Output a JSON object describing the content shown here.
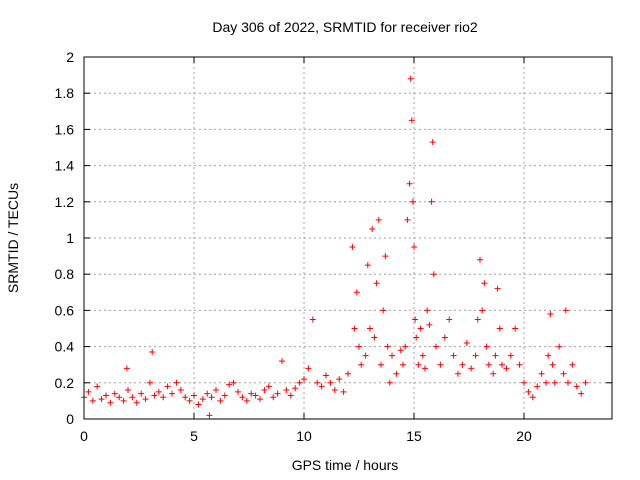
{
  "chart_data": {
    "type": "scatter",
    "title": "Day 306 of 2022, SRMTID for receiver rio2",
    "xlabel": "GPS time / hours",
    "ylabel": "SRMTID / TECUs",
    "xlim": [
      0,
      24
    ],
    "ylim": [
      0,
      2
    ],
    "xticks": [
      0,
      5,
      10,
      15,
      20
    ],
    "xtick_labels": [
      "0",
      "5",
      "10",
      "15",
      "20"
    ],
    "yticks": [
      0,
      0.2,
      0.4,
      0.6,
      0.8,
      1,
      1.2,
      1.4,
      1.6,
      1.8,
      2
    ],
    "ytick_labels": [
      "0",
      "0.2",
      "0.4",
      "0.6",
      "0.8",
      "1",
      "1.2",
      "1.4",
      "1.6",
      "1.8",
      "2"
    ],
    "grid": true,
    "marker": "+",
    "marker_color": "#ff0000",
    "series": [
      {
        "name": "SRMTID",
        "x": [
          0.0,
          0.2,
          0.4,
          0.6,
          0.8,
          1.0,
          1.2,
          1.4,
          1.6,
          1.8,
          1.95,
          2.0,
          2.2,
          2.4,
          2.6,
          2.8,
          3.0,
          3.1,
          3.2,
          3.4,
          3.6,
          3.8,
          4.0,
          4.2,
          4.4,
          4.6,
          4.8,
          5.0,
          5.2,
          5.4,
          5.6,
          5.7,
          5.8,
          6.0,
          6.2,
          6.4,
          6.6,
          6.8,
          7.0,
          7.2,
          7.4,
          7.6,
          7.8,
          8.0,
          8.2,
          8.4,
          8.6,
          8.8,
          9.0,
          9.2,
          9.4,
          9.6,
          9.8,
          10.0,
          10.2,
          10.4,
          10.6,
          10.8,
          11.0,
          11.2,
          11.4,
          11.6,
          11.8,
          12.0,
          12.2,
          12.3,
          12.4,
          12.5,
          12.6,
          12.8,
          12.9,
          13.0,
          13.1,
          13.2,
          13.3,
          13.4,
          13.5,
          13.6,
          13.7,
          13.8,
          13.9,
          14.0,
          14.2,
          14.4,
          14.5,
          14.6,
          14.7,
          14.8,
          14.85,
          14.9,
          14.95,
          15.0,
          15.05,
          15.1,
          15.2,
          15.3,
          15.4,
          15.5,
          15.6,
          15.7,
          15.8,
          15.85,
          15.9,
          16.0,
          16.2,
          16.4,
          16.6,
          16.8,
          17.0,
          17.2,
          17.4,
          17.6,
          17.8,
          17.9,
          18.0,
          18.1,
          18.2,
          18.3,
          18.4,
          18.6,
          18.7,
          18.8,
          18.9,
          19.0,
          19.2,
          19.4,
          19.6,
          19.8,
          20.0,
          20.2,
          20.4,
          20.6,
          20.8,
          21.0,
          21.1,
          21.2,
          21.3,
          21.4,
          21.6,
          21.8,
          21.9,
          22.0,
          22.2,
          22.4,
          22.6,
          22.8
        ],
        "y": [
          0.12,
          0.15,
          0.1,
          0.18,
          0.11,
          0.13,
          0.09,
          0.14,
          0.12,
          0.1,
          0.28,
          0.16,
          0.12,
          0.09,
          0.14,
          0.11,
          0.2,
          0.37,
          0.13,
          0.15,
          0.12,
          0.18,
          0.14,
          0.2,
          0.16,
          0.12,
          0.1,
          0.13,
          0.08,
          0.11,
          0.14,
          0.02,
          0.12,
          0.16,
          0.1,
          0.13,
          0.19,
          0.2,
          0.15,
          0.12,
          0.1,
          0.14,
          0.13,
          0.11,
          0.16,
          0.18,
          0.12,
          0.14,
          0.32,
          0.16,
          0.13,
          0.17,
          0.2,
          0.22,
          0.28,
          0.55,
          0.2,
          0.18,
          0.24,
          0.2,
          0.16,
          0.22,
          0.15,
          0.25,
          0.95,
          0.5,
          0.7,
          0.4,
          0.3,
          0.35,
          0.85,
          0.5,
          1.05,
          0.45,
          0.75,
          1.1,
          0.3,
          0.6,
          0.9,
          0.4,
          0.2,
          0.35,
          0.25,
          0.38,
          0.3,
          0.4,
          1.1,
          1.3,
          1.88,
          1.65,
          1.2,
          0.95,
          0.55,
          0.45,
          0.3,
          0.5,
          0.35,
          0.28,
          0.6,
          0.52,
          1.2,
          1.53,
          0.8,
          0.4,
          0.3,
          0.45,
          0.55,
          0.35,
          0.25,
          0.3,
          0.42,
          0.28,
          0.35,
          0.55,
          0.88,
          0.6,
          0.75,
          0.4,
          0.3,
          0.25,
          0.35,
          0.72,
          0.5,
          0.3,
          0.28,
          0.35,
          0.5,
          0.3,
          0.2,
          0.15,
          0.12,
          0.18,
          0.25,
          0.2,
          0.35,
          0.58,
          0.3,
          0.2,
          0.4,
          0.25,
          0.6,
          0.2,
          0.3,
          0.18,
          0.14,
          0.2
        ]
      }
    ]
  }
}
